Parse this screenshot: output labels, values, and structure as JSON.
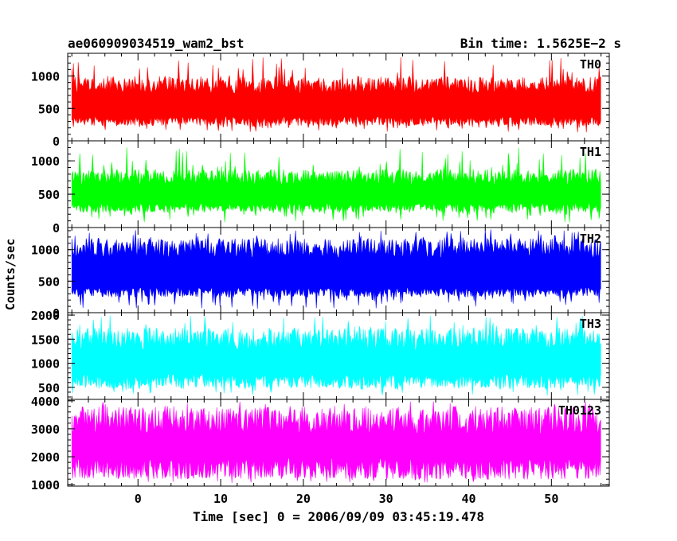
{
  "header": {
    "title": "ae060909034519_wam2_bst",
    "bin_time": "Bin time: 1.5625E−2 s"
  },
  "chart_data": {
    "type": "line",
    "title": "ae060909034519_wam2_bst",
    "xlabel": "Time [sec] 0 = 2006/09/09 03:45:19.478",
    "ylabel": "Counts/sec",
    "xlim": [
      -8.5,
      57
    ],
    "x_data_range": [
      -8,
      56
    ],
    "x_ticks": [
      0,
      10,
      20,
      30,
      40,
      50
    ],
    "x_tick_labels": [
      "0",
      "10",
      "20",
      "30",
      "40",
      "50"
    ],
    "grid": false,
    "legend": "none",
    "panels": [
      {
        "name": "TH0",
        "color": "#ff0000",
        "ylim": [
          0,
          1350
        ],
        "ticks": [
          0,
          500,
          1000
        ],
        "tick_labels": [
          "0",
          "500",
          "1000"
        ],
        "baseline": 330,
        "mean_peak": 890,
        "max_peak": 1300,
        "min_low": 130
      },
      {
        "name": "TH1",
        "color": "#00ff00",
        "ylim": [
          0,
          1300
        ],
        "ticks": [
          0,
          500,
          1000
        ],
        "tick_labels": [
          "0",
          "500",
          "1000"
        ],
        "baseline": 320,
        "mean_peak": 780,
        "max_peak": 1230,
        "min_low": 80
      },
      {
        "name": "TH2",
        "color": "#0000ff",
        "ylim": [
          0,
          1350
        ],
        "ticks": [
          0,
          500,
          1000
        ],
        "tick_labels": [
          "0",
          "500",
          "1000"
        ],
        "baseline": 350,
        "mean_peak": 1050,
        "max_peak": 1320,
        "min_low": 60
      },
      {
        "name": "TH3",
        "color": "#00ffff",
        "ylim": [
          250,
          2050
        ],
        "ticks": [
          500,
          1000,
          1500,
          2000
        ],
        "tick_labels": [
          "500",
          "1000",
          "1500",
          "2000"
        ],
        "baseline": 680,
        "mean_peak": 1550,
        "max_peak": 2000,
        "min_low": 330
      },
      {
        "name": "TH0123",
        "color": "#ff00ff",
        "ylim": [
          950,
          4050
        ],
        "ticks": [
          1000,
          2000,
          3000,
          4000
        ],
        "tick_labels": [
          "1000",
          "2000",
          "3000",
          "4000"
        ],
        "baseline": 1700,
        "mean_peak": 3400,
        "max_peak": 4000,
        "min_low": 1050
      }
    ]
  }
}
